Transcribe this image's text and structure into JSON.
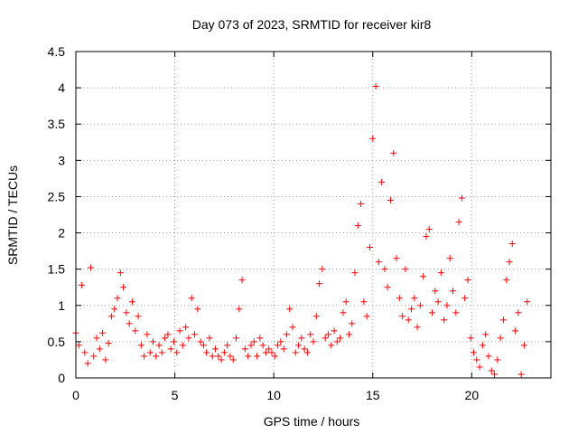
{
  "chart_data": {
    "type": "scatter",
    "title": "Day 073 of 2023, SRMTID for receiver kir8",
    "xlabel": "GPS time / hours",
    "ylabel": "SRMTID / TECUs",
    "xlim": [
      0,
      24
    ],
    "ylim": [
      0,
      4.5
    ],
    "grid": true,
    "marker": "+",
    "color": "#ff0000",
    "xticks": [
      0,
      5,
      10,
      15,
      20
    ],
    "xtick_labels": [
      "0",
      "5",
      "10",
      "15",
      "20"
    ],
    "yticks": [
      0,
      0.5,
      1,
      1.5,
      2,
      2.5,
      3,
      3.5,
      4,
      4.5
    ],
    "ytick_labels": [
      "0",
      "0.5",
      "1",
      "1.5",
      "2",
      "2.5",
      "3",
      "3.5",
      "4",
      "4.5"
    ],
    "x": [
      0.0,
      0.15,
      0.3,
      0.45,
      0.6,
      0.75,
      0.9,
      1.05,
      1.2,
      1.35,
      1.5,
      1.65,
      1.8,
      1.95,
      2.1,
      2.25,
      2.4,
      2.55,
      2.7,
      2.85,
      3.0,
      3.15,
      3.3,
      3.45,
      3.6,
      3.75,
      3.9,
      4.05,
      4.2,
      4.35,
      4.5,
      4.65,
      4.8,
      4.95,
      5.1,
      5.25,
      5.4,
      5.55,
      5.7,
      5.85,
      6.0,
      6.15,
      6.3,
      6.45,
      6.6,
      6.75,
      6.9,
      7.05,
      7.2,
      7.35,
      7.5,
      7.65,
      7.8,
      7.95,
      8.1,
      8.25,
      8.4,
      8.55,
      8.7,
      8.85,
      9.0,
      9.15,
      9.3,
      9.45,
      9.6,
      9.75,
      9.9,
      10.05,
      10.2,
      10.35,
      10.5,
      10.65,
      10.8,
      10.95,
      11.1,
      11.25,
      11.4,
      11.55,
      11.7,
      11.85,
      12.0,
      12.15,
      12.3,
      12.45,
      12.6,
      12.75,
      12.9,
      13.05,
      13.2,
      13.35,
      13.5,
      13.65,
      13.8,
      13.95,
      14.1,
      14.25,
      14.4,
      14.55,
      14.7,
      14.85,
      15.0,
      15.15,
      15.3,
      15.45,
      15.6,
      15.75,
      15.9,
      16.05,
      16.2,
      16.35,
      16.5,
      16.65,
      16.8,
      16.95,
      17.1,
      17.25,
      17.4,
      17.55,
      17.7,
      17.85,
      18.0,
      18.15,
      18.3,
      18.45,
      18.6,
      18.75,
      18.9,
      19.05,
      19.2,
      19.35,
      19.5,
      19.65,
      19.8,
      19.95,
      20.1,
      20.25,
      20.4,
      20.55,
      20.7,
      20.85,
      21.0,
      21.15,
      21.3,
      21.45,
      21.6,
      21.75,
      21.9,
      22.05,
      22.2,
      22.35,
      22.5,
      22.65,
      22.8
    ],
    "y": [
      0.62,
      0.45,
      1.28,
      0.35,
      0.2,
      1.52,
      0.3,
      0.55,
      0.4,
      0.62,
      0.25,
      0.48,
      0.85,
      0.95,
      1.1,
      1.45,
      1.25,
      0.9,
      0.75,
      1.05,
      0.65,
      0.85,
      0.45,
      0.3,
      0.6,
      0.35,
      0.5,
      0.3,
      0.45,
      0.35,
      0.55,
      0.6,
      0.4,
      0.5,
      0.35,
      0.65,
      0.45,
      0.7,
      0.55,
      1.1,
      0.6,
      0.95,
      0.5,
      0.45,
      0.35,
      0.55,
      0.3,
      0.4,
      0.3,
      0.25,
      0.35,
      0.45,
      0.3,
      0.25,
      0.55,
      0.95,
      1.35,
      0.4,
      0.3,
      0.45,
      0.5,
      0.3,
      0.55,
      0.45,
      0.35,
      0.4,
      0.35,
      0.3,
      0.45,
      0.5,
      0.4,
      0.6,
      0.95,
      0.7,
      0.35,
      0.45,
      0.55,
      0.4,
      0.35,
      0.6,
      0.5,
      0.85,
      1.3,
      1.5,
      0.55,
      0.6,
      0.45,
      0.65,
      0.5,
      0.55,
      0.9,
      1.05,
      0.6,
      0.75,
      1.45,
      2.1,
      2.4,
      1.05,
      0.85,
      1.8,
      3.3,
      4.02,
      1.6,
      2.7,
      1.5,
      1.25,
      2.45,
      3.1,
      1.65,
      1.1,
      0.85,
      1.5,
      0.8,
      0.95,
      1.1,
      0.7,
      1.0,
      1.4,
      1.95,
      2.05,
      0.9,
      1.2,
      1.05,
      1.45,
      0.8,
      1.0,
      1.65,
      1.2,
      0.9,
      2.15,
      2.48,
      1.1,
      1.35,
      0.55,
      0.35,
      0.25,
      0.15,
      0.45,
      0.6,
      0.3,
      0.1,
      0.05,
      0.25,
      0.55,
      0.8,
      1.35,
      1.6,
      1.85,
      0.65,
      0.9,
      0.05,
      0.45,
      1.05
    ]
  }
}
